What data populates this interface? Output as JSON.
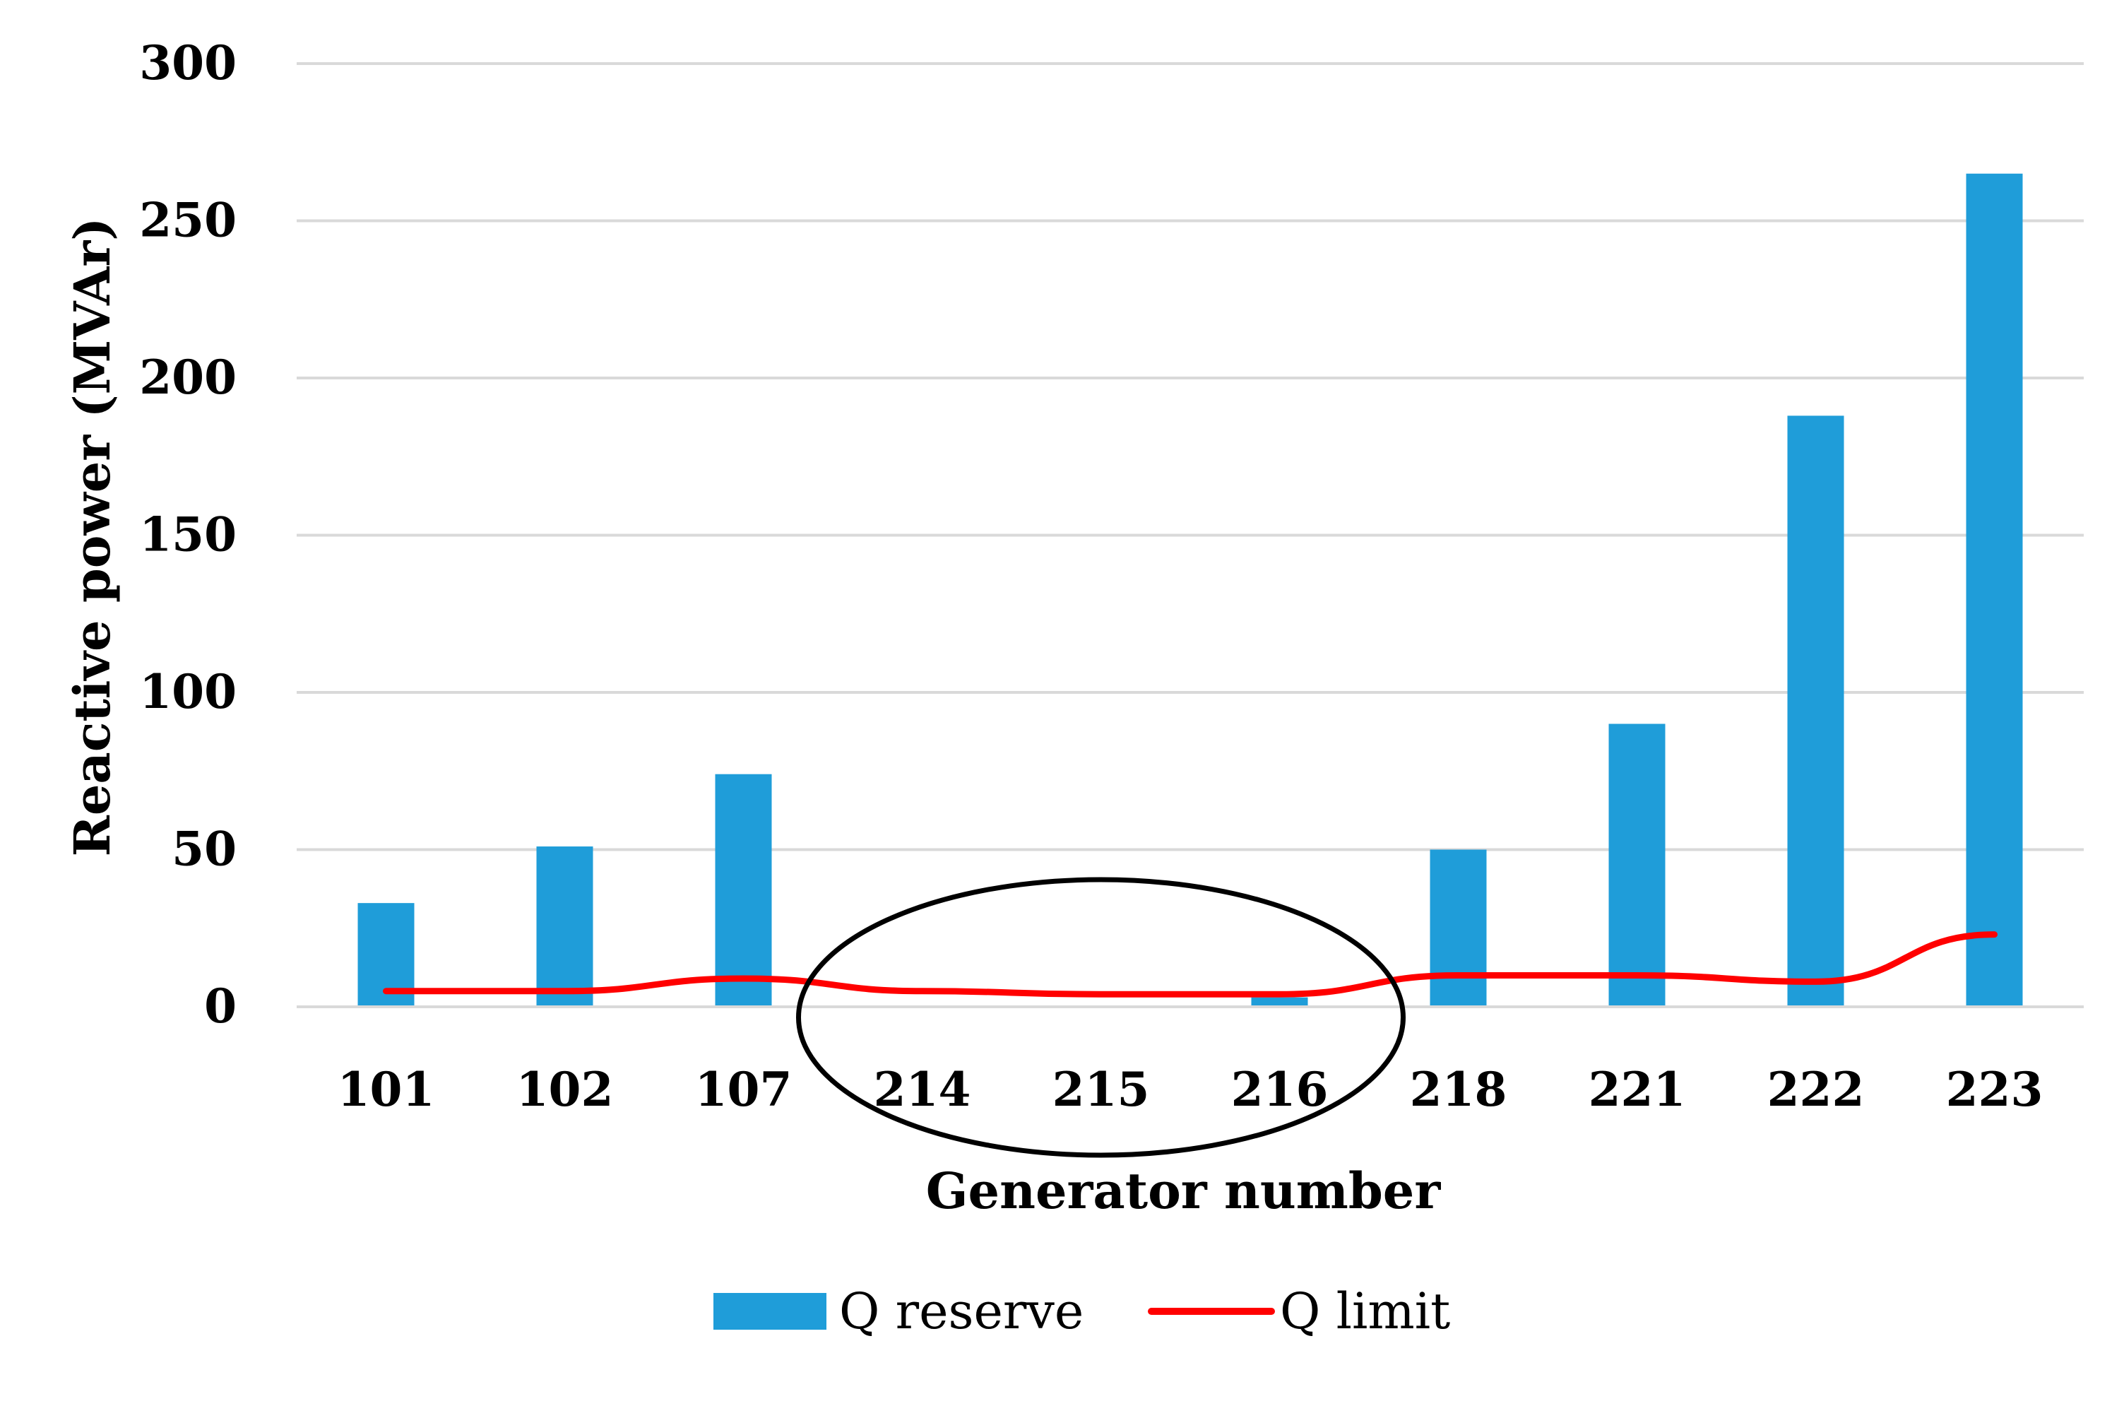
{
  "chart_data": {
    "type": "bar",
    "categories": [
      "101",
      "102",
      "107",
      "214",
      "215",
      "216",
      "218",
      "221",
      "222",
      "223"
    ],
    "series": [
      {
        "name": "Q reserve",
        "type": "bar",
        "color": "#1f9dd9",
        "values": [
          33,
          51,
          74,
          0,
          0,
          3,
          50,
          90,
          188,
          265
        ]
      },
      {
        "name": "Q limit",
        "type": "line",
        "color": "#ff0000",
        "values": [
          5,
          5,
          9,
          5,
          4,
          4,
          10,
          10,
          8,
          23
        ]
      }
    ],
    "xlabel": "Generator number",
    "ylabel": "Reactive power (MVAr)",
    "ylim": [
      0,
      300
    ],
    "yticks": [
      "0",
      "50",
      "100",
      "150",
      "200",
      "250",
      "300"
    ],
    "grid": true,
    "legend": "bottom",
    "annotations": [
      {
        "shape": "ellipse",
        "encloses": [
          "214",
          "215",
          "216"
        ],
        "color": "#000000"
      }
    ]
  }
}
